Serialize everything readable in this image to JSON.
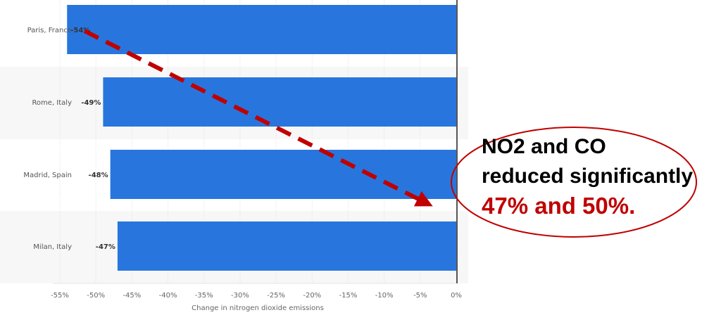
{
  "chart_data": {
    "type": "bar",
    "orientation": "horizontal",
    "categories": [
      "Paris, France",
      "Rome, Italy",
      "Madrid, Spain",
      "Milan, Italy"
    ],
    "values": [
      -54,
      -49,
      -48,
      -47
    ],
    "data_labels": [
      "-54%",
      "-49%",
      "-48%",
      "-47%"
    ],
    "xlabel": "Change in nitrogen dioxide emissions",
    "xlim": [
      -55,
      0
    ],
    "xticks": [
      "-55%",
      "-50%",
      "-45%",
      "-40%",
      "-35%",
      "-30%",
      "-25%",
      "-20%",
      "-15%",
      "-10%",
      "-5%",
      "0%"
    ],
    "grid": true,
    "bar_color": "#2876dd"
  },
  "annotation": {
    "line1": "NO2 and CO",
    "line2": "reduced significantly",
    "line3": "47%  and 50%.",
    "arrow_color": "#c00000",
    "ellipse_color": "#c00000"
  }
}
